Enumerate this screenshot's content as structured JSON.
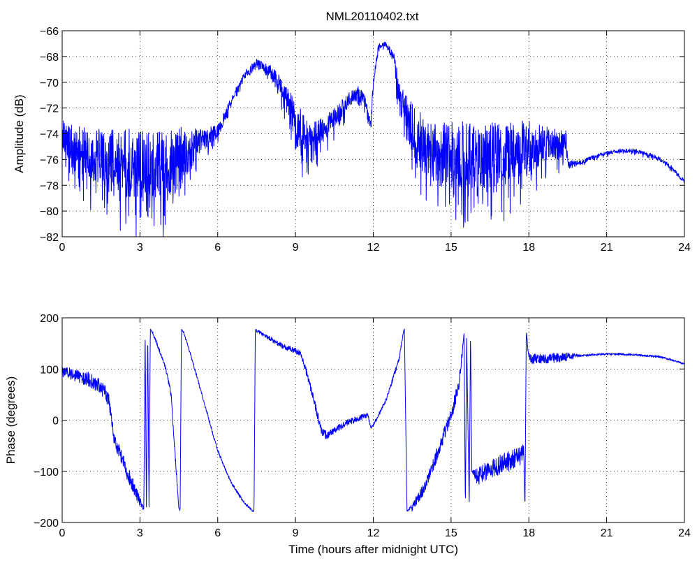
{
  "figure_title": "NML20110402.txt",
  "series_color": "#0000ff",
  "chart_data": [
    {
      "type": "line",
      "ylabel": "Amplitude (dB)",
      "xlabel": "",
      "xlim": [
        0,
        24
      ],
      "ylim": [
        -82,
        -66
      ],
      "grid": true,
      "xticks": [
        0,
        3,
        6,
        9,
        12,
        15,
        18,
        21,
        24
      ],
      "yticks": [
        -82,
        -80,
        -78,
        -76,
        -74,
        -72,
        -70,
        -68,
        -66
      ],
      "series": [
        {
          "x": [
            0,
            0.5,
            1,
            1.5,
            2,
            2.5,
            3,
            3.5,
            4,
            4.5,
            5,
            5.5,
            6,
            6.5,
            7,
            7.5,
            8,
            8.5,
            9,
            9.5,
            10,
            10.5,
            11,
            11.4,
            11.7,
            11.9,
            12.0,
            12.2,
            12.5,
            12.8,
            13.0,
            13.5,
            14,
            14.5,
            15,
            15.5,
            16,
            16.5,
            17,
            17.5,
            18,
            18.5,
            19,
            19.45,
            19.5,
            20,
            20.5,
            21,
            21.5,
            22,
            22.5,
            23,
            23.5,
            24
          ],
          "y": [
            -74.5,
            -75.2,
            -75.5,
            -75.8,
            -76.0,
            -76.2,
            -76.4,
            -76.6,
            -76.5,
            -76.0,
            -75.0,
            -74.3,
            -73.8,
            -71.5,
            -69.5,
            -68.5,
            -69.0,
            -70.5,
            -73.0,
            -74.5,
            -73.8,
            -72.8,
            -71.5,
            -70.8,
            -71.5,
            -73.5,
            -70.0,
            -67.2,
            -67.0,
            -68.2,
            -71.0,
            -73.5,
            -75.0,
            -75.5,
            -75.6,
            -75.6,
            -75.7,
            -75.6,
            -75.4,
            -75.2,
            -75.0,
            -74.8,
            -74.8,
            -74.7,
            -76.3,
            -76.2,
            -75.8,
            -75.5,
            -75.3,
            -75.3,
            -75.5,
            -75.9,
            -76.6,
            -77.7
          ],
          "noise": [
            1.6,
            1.8,
            2.0,
            2.2,
            2.4,
            2.6,
            2.8,
            2.8,
            2.8,
            2.6,
            1.4,
            0.8,
            0.5,
            0.3,
            0.3,
            0.3,
            0.4,
            0.8,
            1.6,
            1.4,
            1.0,
            0.8,
            0.6,
            0.6,
            0.5,
            0.4,
            0.3,
            0.2,
            0.2,
            0.4,
            1.2,
            2.0,
            2.2,
            2.4,
            2.6,
            2.6,
            2.6,
            2.6,
            2.4,
            2.2,
            2.0,
            1.6,
            1.2,
            1.0,
            0.2,
            0.15,
            0.15,
            0.15,
            0.15,
            0.15,
            0.15,
            0.15,
            0.15,
            0.15
          ]
        }
      ]
    },
    {
      "type": "line",
      "ylabel": "Phase (degrees)",
      "xlabel": "Time (hours after midnight UTC)",
      "xlim": [
        0,
        24
      ],
      "ylim": [
        -200,
        200
      ],
      "grid": true,
      "xticks": [
        0,
        3,
        6,
        9,
        12,
        15,
        18,
        21,
        24
      ],
      "yticks": [
        -200,
        -100,
        0,
        100,
        200
      ],
      "series": [
        {
          "x": [
            0,
            0.5,
            1,
            1.5,
            1.8,
            1.9,
            2.0,
            2.2,
            2.5,
            3.0,
            3.15,
            3.2,
            3.25,
            3.3,
            3.35,
            3.4,
            3.45,
            3.5,
            3.8,
            4.0,
            4.2,
            4.4,
            4.5,
            4.55,
            4.6,
            4.7,
            5.0,
            5.5,
            6.0,
            6.5,
            7.0,
            7.35,
            7.4,
            7.45,
            7.5,
            8.0,
            8.5,
            9.0,
            9.2,
            9.5,
            10.0,
            10.2,
            10.5,
            11.0,
            11.5,
            11.8,
            11.9,
            12.0,
            12.5,
            13.0,
            13.15,
            13.2,
            13.3,
            13.5,
            14.0,
            14.5,
            15.0,
            15.3,
            15.45,
            15.5,
            15.55,
            15.6,
            15.7,
            15.75,
            15.8,
            16.0,
            16.5,
            17.0,
            17.5,
            17.7,
            17.8,
            17.85,
            17.9,
            18.0,
            18.5,
            19.0,
            19.5,
            20.0,
            20.5,
            21.0,
            21.5,
            22.0,
            22.5,
            23.0,
            23.5,
            24.0
          ],
          "y": [
            95,
            88,
            80,
            65,
            40,
            10,
            -40,
            -60,
            -100,
            -160,
            -175,
            178,
            -175,
            178,
            -175,
            178,
            175,
            170,
            130,
            100,
            50,
            -100,
            -170,
            -178,
            178,
            170,
            120,
            30,
            -60,
            -120,
            -160,
            -178,
            -178,
            178,
            175,
            160,
            145,
            135,
            130,
            80,
            -20,
            -30,
            -20,
            -5,
            5,
            10,
            -15,
            -10,
            40,
            120,
            170,
            178,
            -178,
            -170,
            -130,
            -60,
            10,
            70,
            140,
            170,
            -178,
            160,
            -170,
            170,
            -100,
            -110,
            -95,
            -85,
            -75,
            -70,
            -55,
            -175,
            175,
            120,
            120,
            122,
            124,
            126,
            128,
            129,
            129,
            128,
            126,
            124,
            118,
            110
          ],
          "noise": [
            10,
            12,
            14,
            16,
            18,
            14,
            12,
            14,
            16,
            10,
            4,
            0,
            0,
            0,
            0,
            0,
            2,
            3,
            4,
            4,
            6,
            6,
            4,
            0,
            0,
            3,
            3,
            3,
            3,
            3,
            3,
            2,
            0,
            0,
            3,
            4,
            5,
            6,
            6,
            8,
            8,
            8,
            6,
            6,
            6,
            5,
            3,
            3,
            4,
            5,
            3,
            0,
            0,
            8,
            12,
            14,
            14,
            14,
            8,
            0,
            0,
            0,
            0,
            0,
            0,
            18,
            18,
            20,
            20,
            20,
            10,
            0,
            0,
            10,
            10,
            10,
            8,
            2,
            2,
            2,
            2,
            2,
            2,
            2,
            2,
            2
          ]
        }
      ]
    }
  ]
}
